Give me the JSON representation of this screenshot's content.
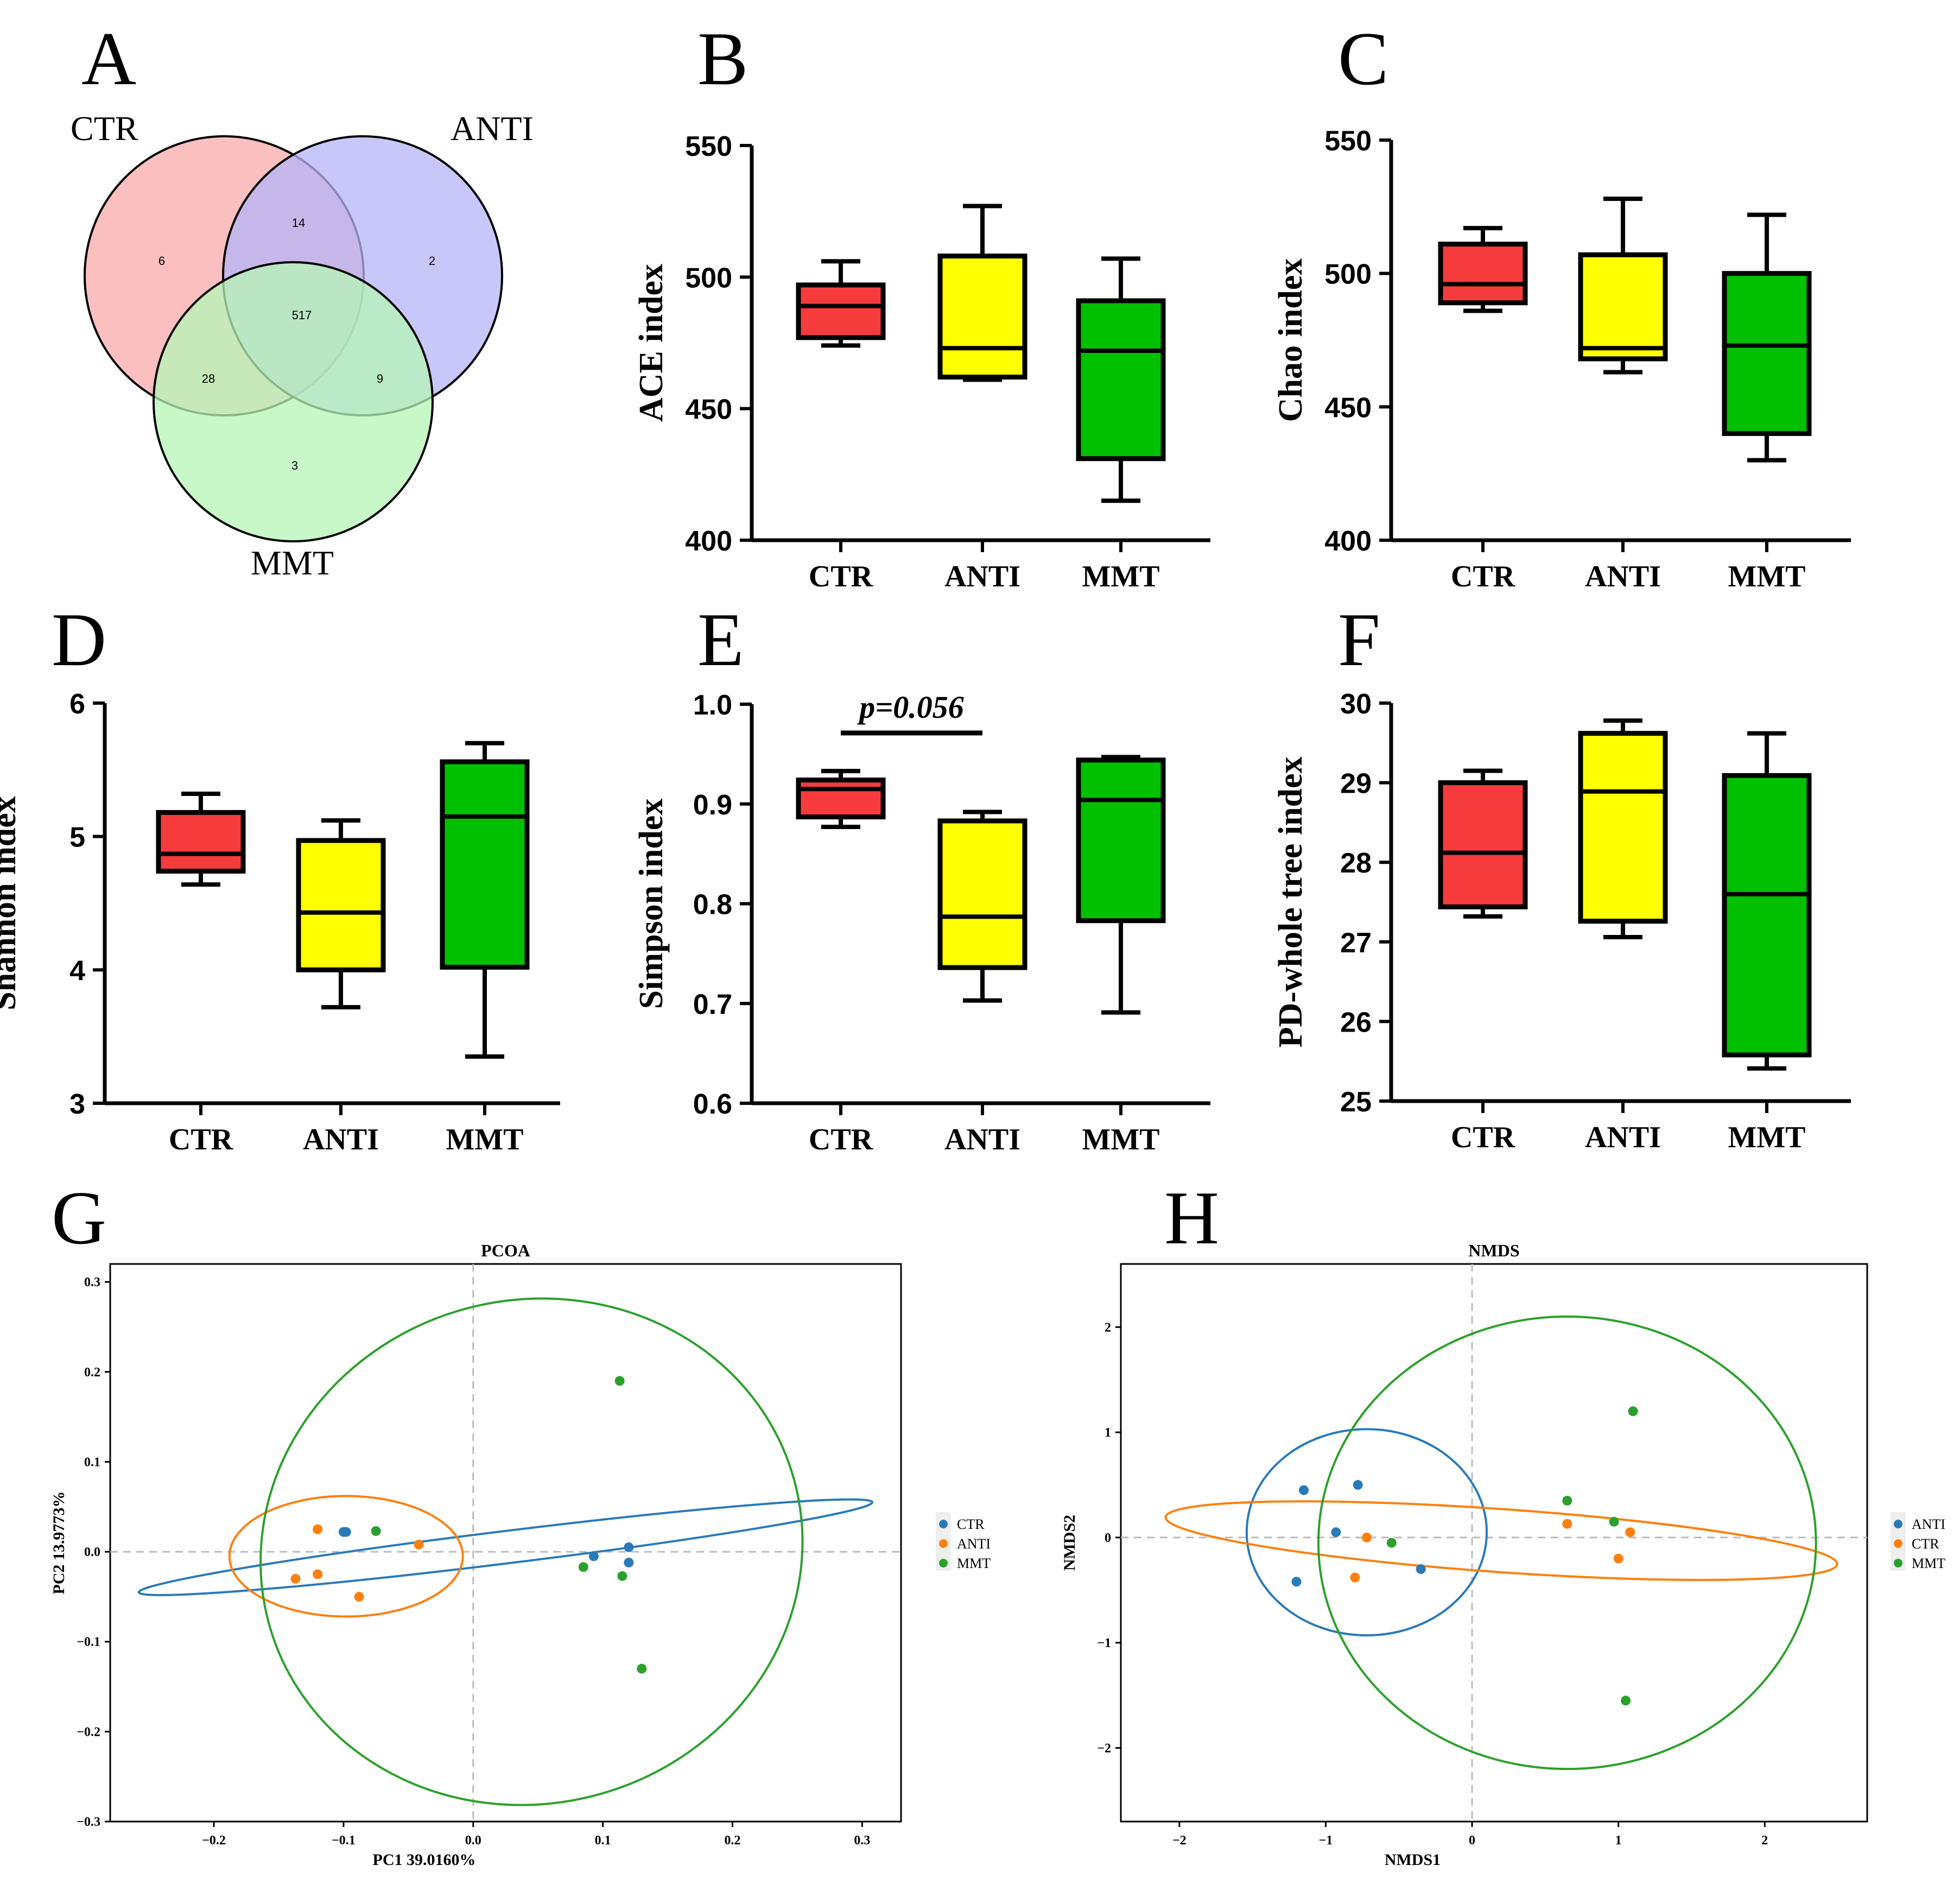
{
  "panels": {
    "A": {
      "letter": "A"
    },
    "B": {
      "letter": "B"
    },
    "C": {
      "letter": "C"
    },
    "D": {
      "letter": "D"
    },
    "E": {
      "letter": "E"
    },
    "F": {
      "letter": "F"
    },
    "G": {
      "letter": "G"
    },
    "H": {
      "letter": "H"
    }
  },
  "colors": {
    "ctr_box": "#f53b3b",
    "anti_box": "#ffff00",
    "mmt_box": "#00c000",
    "venn_ctr": "#f9aaaa",
    "venn_anti": "#b4b4f8",
    "venn_mmt": "#b6f5b6",
    "ord_blue": "#2a7ab9",
    "ord_orange": "#ff7f0e",
    "ord_green": "#2ca02c"
  },
  "chart_data": [
    {
      "panel": "A",
      "type": "venn",
      "sets": [
        "CTR",
        "ANTI",
        "MMT"
      ],
      "regions": {
        "CTR_only": 6,
        "ANTI_only": 2,
        "MMT_only": 3,
        "CTR_ANTI": 14,
        "CTR_MMT": 28,
        "ANTI_MMT": 9,
        "all": 517
      }
    },
    {
      "panel": "B",
      "type": "box",
      "ylabel": "ACE index",
      "ylim": [
        400,
        550
      ],
      "yticks": [
        400,
        450,
        500,
        550
      ],
      "categories": [
        "CTR",
        "ANTI",
        "MMT"
      ],
      "boxes": [
        {
          "min": 474,
          "q1": 477,
          "median": 489,
          "q3": 497,
          "max": 506
        },
        {
          "min": 461,
          "q1": 462,
          "median": 473,
          "q3": 508,
          "max": 527
        },
        {
          "min": 415,
          "q1": 431,
          "median": 472,
          "q3": 491,
          "max": 507
        }
      ]
    },
    {
      "panel": "C",
      "type": "box",
      "ylabel": "Chao index",
      "ylim": [
        400,
        550
      ],
      "yticks": [
        400,
        450,
        500,
        550
      ],
      "categories": [
        "CTR",
        "ANTI",
        "MMT"
      ],
      "boxes": [
        {
          "min": 486,
          "q1": 489,
          "median": 496,
          "q3": 511,
          "max": 517
        },
        {
          "min": 463,
          "q1": 468,
          "median": 472,
          "q3": 507,
          "max": 528
        },
        {
          "min": 430,
          "q1": 440,
          "median": 473,
          "q3": 500,
          "max": 522
        }
      ]
    },
    {
      "panel": "D",
      "type": "box",
      "ylabel": "Shannon index",
      "ylim": [
        3,
        6
      ],
      "yticks": [
        3,
        4,
        5,
        6
      ],
      "categories": [
        "CTR",
        "ANTI",
        "MMT"
      ],
      "boxes": [
        {
          "min": 4.64,
          "q1": 4.74,
          "median": 4.87,
          "q3": 5.18,
          "max": 5.32
        },
        {
          "min": 3.72,
          "q1": 4.0,
          "median": 4.43,
          "q3": 4.97,
          "max": 5.12
        },
        {
          "min": 3.35,
          "q1": 4.02,
          "median": 5.15,
          "q3": 5.56,
          "max": 5.7
        }
      ]
    },
    {
      "panel": "E",
      "type": "box",
      "ylabel": "Simpson index",
      "ylim": [
        0.6,
        1.0
      ],
      "yticks": [
        "0.6",
        "0.7",
        "0.8",
        "0.9",
        "1.0"
      ],
      "categories": [
        "CTR",
        "ANTI",
        "MMT"
      ],
      "annotation": "p=0.056",
      "boxes": [
        {
          "min": 0.877,
          "q1": 0.887,
          "median": 0.915,
          "q3": 0.924,
          "max": 0.933
        },
        {
          "min": 0.703,
          "q1": 0.736,
          "median": 0.787,
          "q3": 0.883,
          "max": 0.892
        },
        {
          "min": 0.691,
          "q1": 0.783,
          "median": 0.904,
          "q3": 0.944,
          "max": 0.947
        }
      ]
    },
    {
      "panel": "F",
      "type": "box",
      "ylabel": "PD-whole tree index",
      "ylim": [
        25,
        30
      ],
      "yticks": [
        25,
        26,
        27,
        28,
        29,
        30
      ],
      "categories": [
        "CTR",
        "ANTI",
        "MMT"
      ],
      "boxes": [
        {
          "min": 27.32,
          "q1": 27.44,
          "median": 28.12,
          "q3": 29.0,
          "max": 29.15
        },
        {
          "min": 27.06,
          "q1": 27.26,
          "median": 28.89,
          "q3": 29.62,
          "max": 29.78
        },
        {
          "min": 25.41,
          "q1": 25.58,
          "median": 27.6,
          "q3": 29.09,
          "max": 29.62
        }
      ]
    },
    {
      "panel": "G",
      "type": "scatter",
      "title": "PCOA",
      "xlabel": "PC1 39.0160%",
      "ylabel": "PC2 13.9773%",
      "xlim": [
        -0.28,
        0.33
      ],
      "ylim": [
        -0.3,
        0.32
      ],
      "xticks": [
        "−0.2",
        "−0.1",
        "0.0",
        "0.1",
        "0.2",
        "0.3"
      ],
      "yticks": [
        "−0.3",
        "−0.2",
        "−0.1",
        "0.0",
        "0.1",
        "0.2",
        "0.3"
      ],
      "legend": [
        "CTR",
        "ANTI",
        "MMT"
      ],
      "series": [
        {
          "name": "CTR",
          "points": [
            [
              -0.1,
              0.022
            ],
            [
              -0.098,
              0.022
            ],
            [
              0.093,
              -0.005
            ],
            [
              0.12,
              0.005
            ],
            [
              0.12,
              -0.012
            ]
          ],
          "ellipse": {
            "cx": 0.025,
            "cy": 0.005,
            "rx": 0.285,
            "ry": 0.018,
            "angle": -7
          }
        },
        {
          "name": "ANTI",
          "points": [
            [
              -0.12,
              0.025
            ],
            [
              -0.12,
              -0.025
            ],
            [
              -0.137,
              -0.03
            ],
            [
              -0.088,
              -0.05
            ],
            [
              -0.042,
              0.008
            ]
          ],
          "ellipse": {
            "cx": -0.098,
            "cy": -0.005,
            "rx": 0.09,
            "ry": 0.067,
            "angle": 0
          }
        },
        {
          "name": "MMT",
          "points": [
            [
              0.113,
              0.19
            ],
            [
              0.13,
              -0.13
            ],
            [
              0.115,
              -0.027
            ],
            [
              0.085,
              -0.017
            ],
            [
              -0.075,
              0.023
            ]
          ],
          "ellipse": {
            "cx": 0.045,
            "cy": 0.0,
            "rx": 0.21,
            "ry": 0.28,
            "angle": -15
          }
        }
      ]
    },
    {
      "panel": "H",
      "type": "scatter",
      "title": "NMDS",
      "xlabel": "NMDS1",
      "ylabel": "NMDS2",
      "xlim": [
        -2.4,
        2.7
      ],
      "ylim": [
        -2.7,
        2.6
      ],
      "xticks": [
        "−2",
        "−1",
        "0",
        "1",
        "2"
      ],
      "yticks": [
        "−2",
        "−1",
        "0",
        "1",
        "2"
      ],
      "legend": [
        "ANTI",
        "CTR",
        "MMT"
      ],
      "series": [
        {
          "name": "ANTI",
          "points": [
            [
              -1.15,
              0.45
            ],
            [
              -0.78,
              0.5
            ],
            [
              -0.93,
              0.05
            ],
            [
              -0.35,
              -0.3
            ],
            [
              -1.2,
              -0.42
            ]
          ],
          "ellipse": {
            "cx": -0.72,
            "cy": 0.05,
            "rx": 0.82,
            "ry": 0.98,
            "angle": 0
          }
        },
        {
          "name": "CTR",
          "points": [
            [
              -0.72,
              0.0
            ],
            [
              -0.8,
              -0.38
            ],
            [
              0.65,
              0.13
            ],
            [
              1.08,
              0.05
            ],
            [
              1.0,
              -0.2
            ]
          ],
          "ellipse": {
            "cx": 0.2,
            "cy": -0.03,
            "rx": 2.3,
            "ry": 0.3,
            "angle": 4
          }
        },
        {
          "name": "MMT",
          "points": [
            [
              1.1,
              1.2
            ],
            [
              0.65,
              0.35
            ],
            [
              1.05,
              -1.55
            ],
            [
              0.97,
              0.15
            ],
            [
              -0.55,
              -0.05
            ]
          ],
          "ellipse": {
            "cx": 0.65,
            "cy": -0.05,
            "rx": 1.7,
            "ry": 2.15,
            "angle": 0
          }
        }
      ]
    }
  ]
}
